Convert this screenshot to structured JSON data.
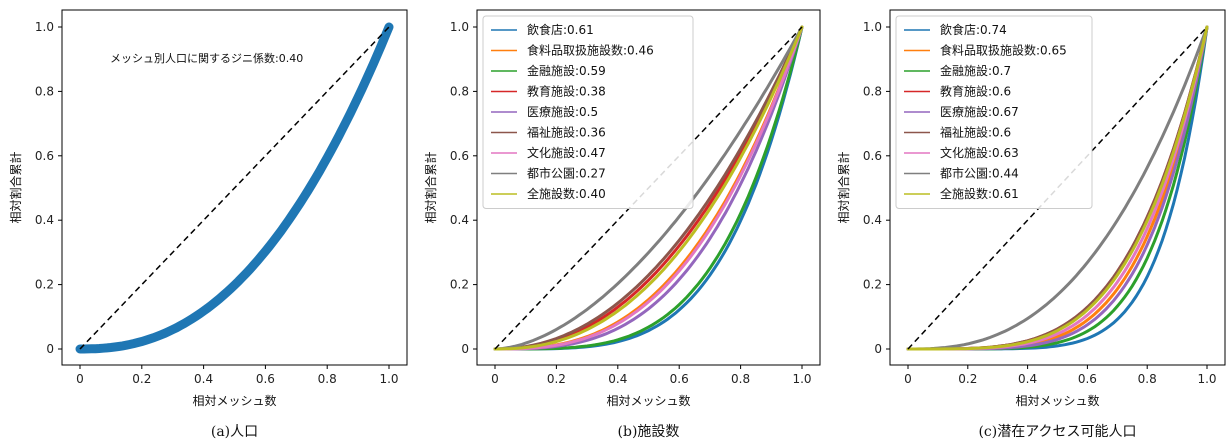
{
  "chart_data": [
    {
      "type": "line",
      "caption": "(a)人口",
      "xlabel": "相対メッシュ数",
      "ylabel": "相対割合累計",
      "xlim": [
        0,
        1
      ],
      "ylim": [
        0,
        1
      ],
      "xticks": [
        "0",
        "0.2",
        "0.4",
        "0.6",
        "0.8",
        "1.0"
      ],
      "yticks": [
        "0",
        "0.2",
        "0.4",
        "0.6",
        "0.8",
        "1.0"
      ],
      "annotation": "メッシュ別人口に関するジニ係数:0.40",
      "equality_line": true,
      "series": [
        {
          "color": "#1f77b4",
          "gini": 0.4,
          "x": [
            0,
            0.1,
            0.2,
            0.3,
            0.4,
            0.5,
            0.6,
            0.7,
            0.8,
            0.9,
            1.0
          ],
          "y": [
            0,
            0.02,
            0.07,
            0.14,
            0.22,
            0.32,
            0.43,
            0.55,
            0.69,
            0.84,
            1.0
          ]
        }
      ]
    },
    {
      "type": "line",
      "caption": "(b)施設数",
      "xlabel": "相対メッシュ数",
      "ylabel": "相対割合累計",
      "xlim": [
        0,
        1
      ],
      "ylim": [
        0,
        1
      ],
      "xticks": [
        "0",
        "0.2",
        "0.4",
        "0.6",
        "0.8",
        "1.0"
      ],
      "yticks": [
        "0",
        "0.2",
        "0.4",
        "0.6",
        "0.8",
        "1.0"
      ],
      "legend_position": "upper-left",
      "equality_line": true,
      "series": [
        {
          "name": "飲食店:0.61",
          "color": "#1f77b4",
          "gini": 0.61
        },
        {
          "name": "食料品取扱施設数:0.46",
          "color": "#ff7f0e",
          "gini": 0.46
        },
        {
          "name": "金融施設:0.59",
          "color": "#2ca02c",
          "gini": 0.59
        },
        {
          "name": "教育施設:0.38",
          "color": "#d62728",
          "gini": 0.38
        },
        {
          "name": "医療施設:0.5",
          "color": "#9467bd",
          "gini": 0.5
        },
        {
          "name": "福祉施設:0.36",
          "color": "#8c564b",
          "gini": 0.36
        },
        {
          "name": "文化施設:0.47",
          "color": "#e377c2",
          "gini": 0.47
        },
        {
          "name": "都市公園:0.27",
          "color": "#7f7f7f",
          "gini": 0.27
        },
        {
          "name": "全施設数:0.40",
          "color": "#bcbd22",
          "gini": 0.4
        }
      ]
    },
    {
      "type": "line",
      "caption": "(c)潜在アクセス可能人口",
      "xlabel": "相対メッシュ数",
      "ylabel": "相対割合累計",
      "xlim": [
        0,
        1
      ],
      "ylim": [
        0,
        1
      ],
      "xticks": [
        "0",
        "0.2",
        "0.4",
        "0.6",
        "0.8",
        "1.0"
      ],
      "yticks": [
        "0",
        "0.2",
        "0.4",
        "0.6",
        "0.8",
        "1.0"
      ],
      "legend_position": "upper-left",
      "equality_line": true,
      "series": [
        {
          "name": "飲食店:0.74",
          "color": "#1f77b4",
          "gini": 0.74
        },
        {
          "name": "食料品取扱施設数:0.65",
          "color": "#ff7f0e",
          "gini": 0.65
        },
        {
          "name": "金融施設:0.7",
          "color": "#2ca02c",
          "gini": 0.7
        },
        {
          "name": "教育施設:0.6",
          "color": "#d62728",
          "gini": 0.6
        },
        {
          "name": "医療施設:0.67",
          "color": "#9467bd",
          "gini": 0.67
        },
        {
          "name": "福祉施設:0.6",
          "color": "#8c564b",
          "gini": 0.6
        },
        {
          "name": "文化施設:0.63",
          "color": "#e377c2",
          "gini": 0.63
        },
        {
          "name": "都市公園:0.44",
          "color": "#7f7f7f",
          "gini": 0.44
        },
        {
          "name": "全施設数:0.61",
          "color": "#bcbd22",
          "gini": 0.61
        }
      ]
    }
  ]
}
